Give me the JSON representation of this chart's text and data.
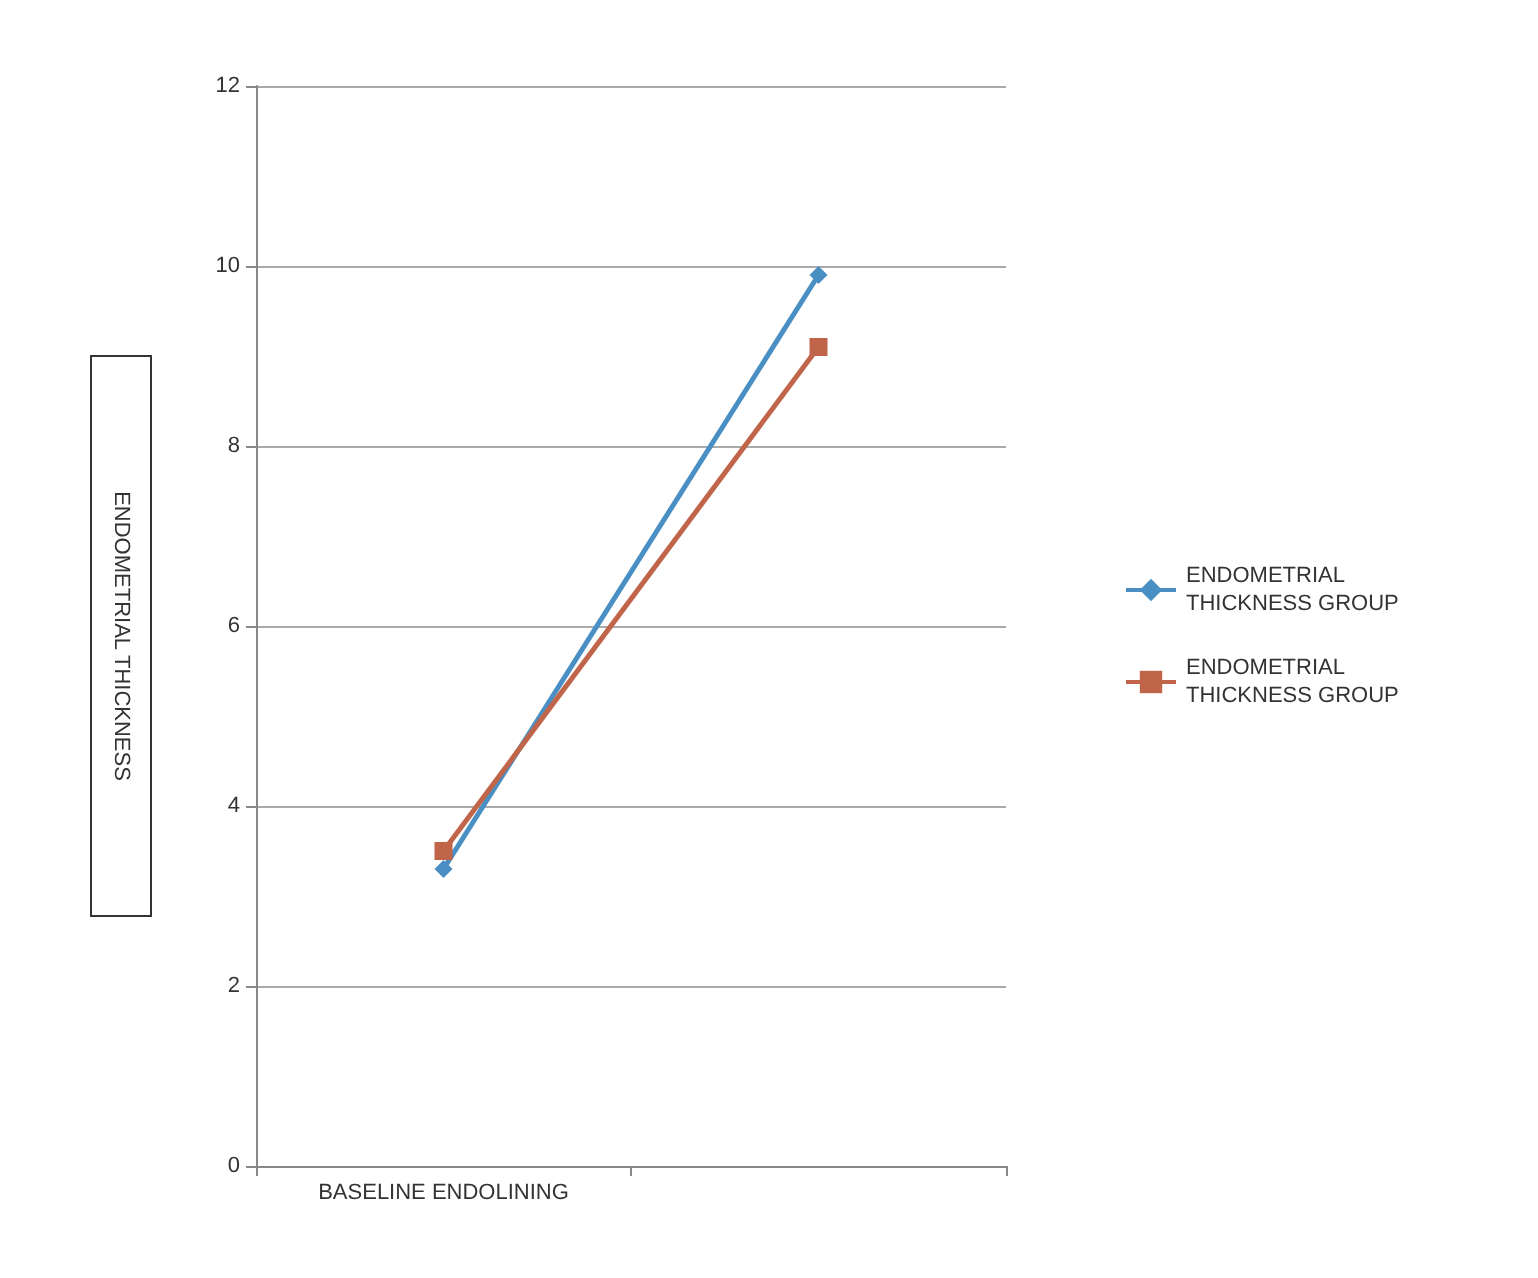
{
  "chart_data": {
    "type": "line",
    "ylabel": "ENDOMETRIAL THICKNESS",
    "categories": [
      "BASELINE ENDOLINING",
      null
    ],
    "series": [
      {
        "name": "ENDOMETRIAL THICKNESS GROUP",
        "color": "#4a8fc4",
        "marker": "diamond",
        "values": [
          3.3,
          9.9
        ]
      },
      {
        "name": "ENDOMETRIAL THICKNESS GROUP",
        "color": "#c0654a",
        "marker": "square",
        "values": [
          3.5,
          9.1
        ]
      }
    ],
    "ylim": [
      0,
      12
    ],
    "yticks": [
      0,
      2,
      4,
      6,
      8,
      10,
      12
    ],
    "grid": "y",
    "legend": "right"
  }
}
